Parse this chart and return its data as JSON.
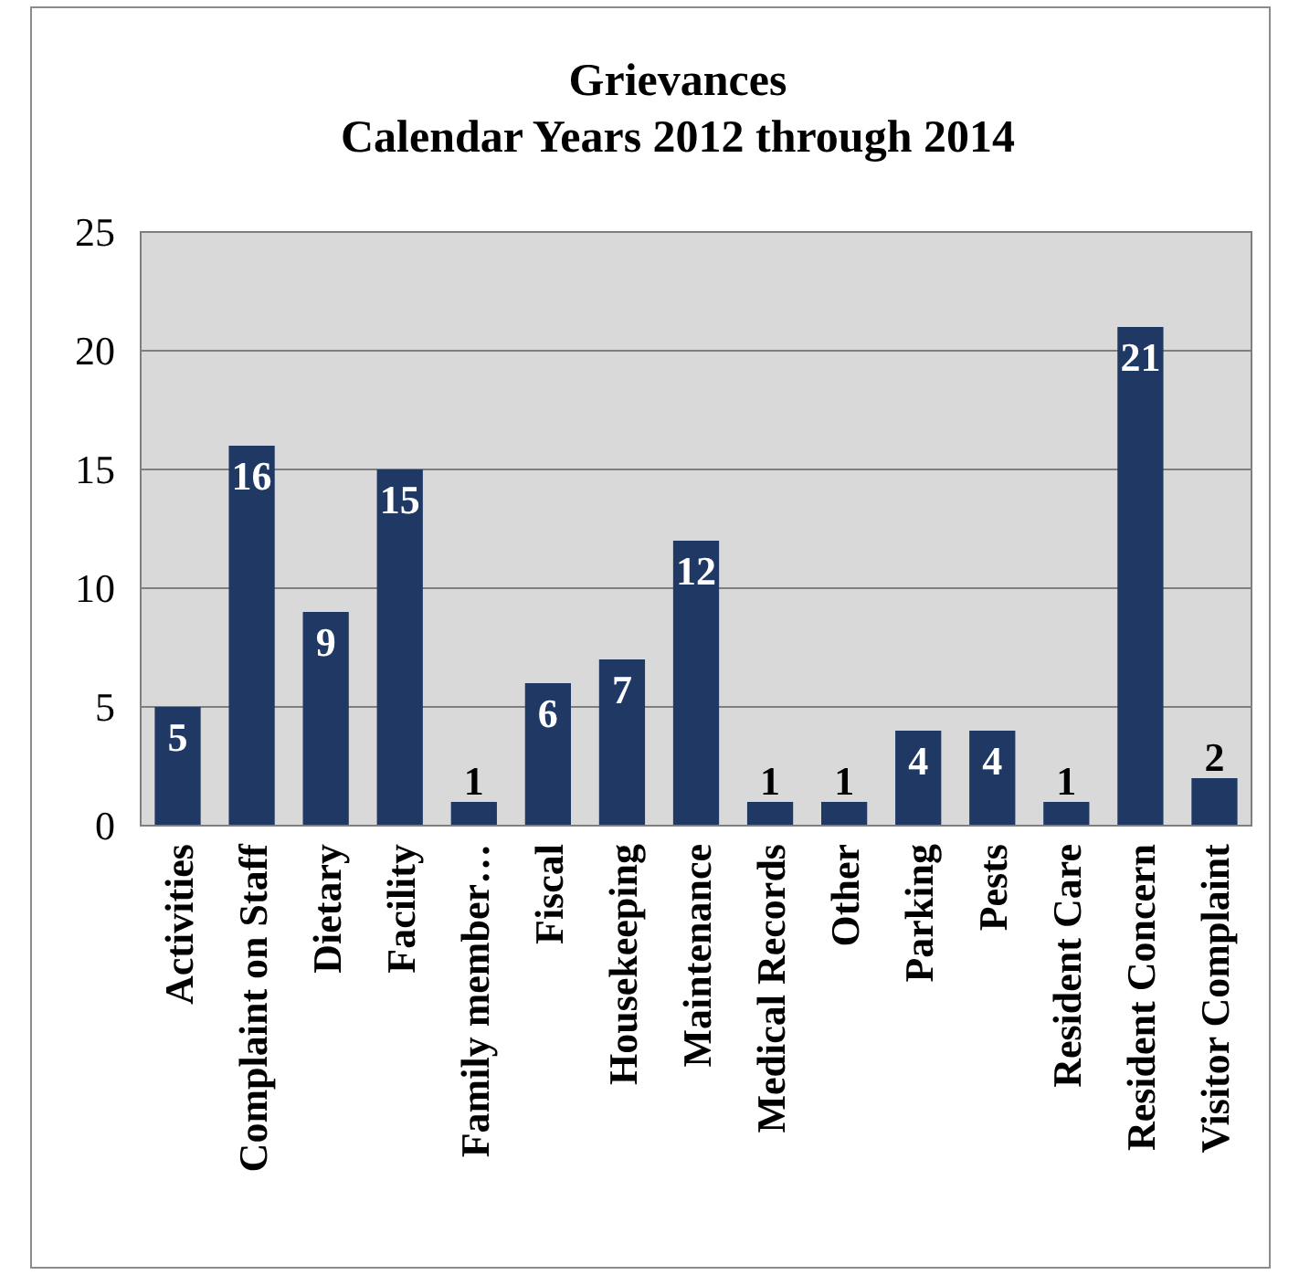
{
  "chart_data": {
    "type": "bar",
    "title": "Grievances",
    "subtitle": "Calendar Years 2012 through 2014",
    "categories": [
      "Activities",
      "Complaint on Staff",
      "Dietary",
      "Facility",
      "Family member…",
      "Fiscal",
      "Housekeeping",
      "Maintenance",
      "Medical Records",
      "Other",
      "Parking",
      "Pests",
      "Resident Care",
      "Resident Concern",
      "Visitor Complaint"
    ],
    "values": [
      5,
      16,
      9,
      15,
      1,
      6,
      7,
      12,
      1,
      1,
      4,
      4,
      1,
      21,
      2
    ],
    "color": "#1f3864",
    "ylim": [
      0,
      25
    ],
    "yticks": [
      0,
      5,
      10,
      15,
      20,
      25
    ],
    "grid": "y",
    "data_labels": true
  }
}
